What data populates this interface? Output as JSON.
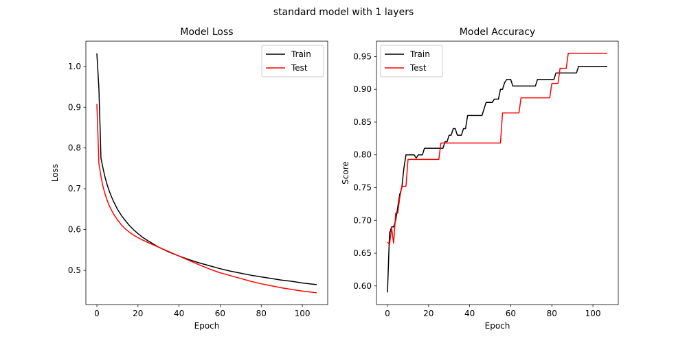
{
  "figure": {
    "suptitle": "standard model with 1 layers"
  },
  "chart_data": [
    {
      "type": "line",
      "title": "Model Loss",
      "xlabel": "Epoch",
      "ylabel": "Loss",
      "xlim": [
        -5.35,
        112.35
      ],
      "ylim": [
        0.416,
        1.062
      ],
      "xticks": [
        0,
        20,
        40,
        60,
        80,
        100
      ],
      "yticks": [
        0.5,
        0.6,
        0.7,
        0.8,
        0.9,
        1.0
      ],
      "ytick_format": 1,
      "legend": "top-right",
      "grid": false,
      "series": [
        {
          "name": "Train",
          "color": "#000000",
          "x": [
            0,
            1,
            2,
            3,
            4,
            5,
            6,
            7,
            8,
            10,
            12,
            14,
            16,
            18,
            20,
            22,
            25,
            30,
            35,
            40,
            45,
            50,
            55,
            60,
            65,
            70,
            75,
            80,
            85,
            90,
            95,
            100,
            105,
            107
          ],
          "y": [
            1.032,
            0.945,
            0.775,
            0.75,
            0.728,
            0.71,
            0.695,
            0.682,
            0.67,
            0.65,
            0.634,
            0.621,
            0.609,
            0.599,
            0.59,
            0.582,
            0.572,
            0.557,
            0.545,
            0.535,
            0.526,
            0.518,
            0.511,
            0.504,
            0.498,
            0.493,
            0.488,
            0.484,
            0.48,
            0.476,
            0.473,
            0.469,
            0.466,
            0.465
          ]
        },
        {
          "name": "Test",
          "color": "#ff0000",
          "x": [
            0,
            1,
            2,
            3,
            4,
            5,
            6,
            8,
            10,
            12,
            14,
            16,
            18,
            20,
            22,
            25,
            30,
            35,
            40,
            45,
            50,
            55,
            60,
            65,
            70,
            75,
            80,
            85,
            90,
            95,
            100,
            105,
            107
          ],
          "y": [
            0.908,
            0.762,
            0.73,
            0.705,
            0.687,
            0.672,
            0.659,
            0.639,
            0.624,
            0.611,
            0.601,
            0.593,
            0.586,
            0.58,
            0.575,
            0.568,
            0.557,
            0.546,
            0.535,
            0.524,
            0.513,
            0.503,
            0.494,
            0.487,
            0.48,
            0.473,
            0.467,
            0.462,
            0.457,
            0.453,
            0.449,
            0.446,
            0.445
          ]
        }
      ]
    },
    {
      "type": "line",
      "title": "Model Accuracy",
      "xlabel": "Epoch",
      "ylabel": "Score",
      "xlim": [
        -5.35,
        112.35
      ],
      "ylim": [
        0.5715,
        0.9735
      ],
      "xticks": [
        0,
        20,
        40,
        60,
        80,
        100
      ],
      "yticks": [
        0.6,
        0.65,
        0.7,
        0.75,
        0.8,
        0.85,
        0.9,
        0.95
      ],
      "ytick_format": 2,
      "legend": "top-left",
      "grid": false,
      "series": [
        {
          "name": "Train",
          "color": "#000000",
          "x": [
            0,
            1,
            2,
            3,
            4,
            5,
            6,
            7,
            8,
            9,
            10,
            11,
            12,
            13,
            14,
            15,
            16,
            17,
            18,
            19,
            20,
            21,
            22,
            23,
            24,
            25,
            26,
            27,
            28,
            29,
            30,
            31,
            32,
            33,
            34,
            35,
            36,
            37,
            38,
            39,
            40,
            41,
            42,
            43,
            44,
            45,
            46,
            47,
            48,
            49,
            50,
            51,
            52,
            53,
            54,
            55,
            56,
            57,
            58,
            59,
            60,
            61,
            62,
            63,
            64,
            65,
            66,
            67,
            68,
            69,
            70,
            71,
            72,
            73,
            74,
            75,
            76,
            77,
            78,
            79,
            80,
            81,
            82,
            83,
            84,
            85,
            86,
            87,
            88,
            89,
            90,
            91,
            92,
            93,
            94,
            95,
            96,
            97,
            98,
            99,
            100,
            101,
            102,
            103,
            104,
            105,
            106,
            107
          ],
          "y": [
            0.59,
            0.68,
            0.69,
            0.69,
            0.7,
            0.72,
            0.74,
            0.75,
            0.78,
            0.8,
            0.8,
            0.8,
            0.8,
            0.8,
            0.795,
            0.8,
            0.8,
            0.8,
            0.81,
            0.81,
            0.81,
            0.81,
            0.81,
            0.81,
            0.81,
            0.81,
            0.81,
            0.81,
            0.82,
            0.82,
            0.83,
            0.83,
            0.84,
            0.84,
            0.83,
            0.83,
            0.83,
            0.84,
            0.84,
            0.86,
            0.86,
            0.86,
            0.86,
            0.86,
            0.86,
            0.86,
            0.86,
            0.87,
            0.88,
            0.88,
            0.88,
            0.88,
            0.885,
            0.885,
            0.885,
            0.9,
            0.9,
            0.91,
            0.915,
            0.915,
            0.915,
            0.905,
            0.905,
            0.905,
            0.905,
            0.905,
            0.905,
            0.905,
            0.905,
            0.905,
            0.905,
            0.905,
            0.905,
            0.915,
            0.915,
            0.915,
            0.915,
            0.915,
            0.915,
            0.915,
            0.915,
            0.915,
            0.925,
            0.925,
            0.925,
            0.925,
            0.925,
            0.925,
            0.925,
            0.925,
            0.925,
            0.925,
            0.925,
            0.935,
            0.935,
            0.935,
            0.935,
            0.935,
            0.935,
            0.935,
            0.935,
            0.935,
            0.935,
            0.935,
            0.935,
            0.935,
            0.935,
            0.935
          ]
        },
        {
          "name": "Test",
          "color": "#ff0000",
          "x": [
            0,
            1,
            2,
            3,
            4,
            5,
            6,
            7,
            8,
            9,
            10,
            11,
            12,
            13,
            14,
            15,
            16,
            17,
            18,
            19,
            20,
            21,
            22,
            23,
            24,
            25,
            26,
            27,
            28,
            29,
            30,
            31,
            32,
            33,
            34,
            35,
            36,
            37,
            38,
            39,
            40,
            41,
            42,
            43,
            44,
            45,
            46,
            47,
            48,
            49,
            50,
            51,
            52,
            53,
            54,
            55,
            56,
            57,
            58,
            59,
            60,
            61,
            62,
            63,
            64,
            65,
            66,
            67,
            68,
            69,
            70,
            71,
            72,
            73,
            74,
            75,
            76,
            77,
            78,
            79,
            80,
            81,
            82,
            83,
            84,
            85,
            86,
            87,
            88,
            89,
            90,
            91,
            92,
            93,
            94,
            95,
            96,
            97,
            98,
            99,
            100,
            101,
            102,
            103,
            104,
            105,
            106,
            107
          ],
          "y": [
            0.667,
            0.663,
            0.689,
            0.665,
            0.711,
            0.711,
            0.735,
            0.752,
            0.752,
            0.752,
            0.793,
            0.793,
            0.793,
            0.793,
            0.793,
            0.793,
            0.793,
            0.793,
            0.793,
            0.793,
            0.793,
            0.793,
            0.793,
            0.793,
            0.793,
            0.793,
            0.818,
            0.818,
            0.818,
            0.818,
            0.818,
            0.818,
            0.818,
            0.818,
            0.818,
            0.818,
            0.818,
            0.818,
            0.818,
            0.818,
            0.818,
            0.818,
            0.818,
            0.818,
            0.818,
            0.818,
            0.818,
            0.818,
            0.818,
            0.818,
            0.818,
            0.818,
            0.818,
            0.818,
            0.818,
            0.818,
            0.864,
            0.864,
            0.864,
            0.864,
            0.864,
            0.864,
            0.864,
            0.864,
            0.864,
            0.887,
            0.887,
            0.887,
            0.887,
            0.887,
            0.887,
            0.887,
            0.887,
            0.887,
            0.887,
            0.887,
            0.887,
            0.887,
            0.887,
            0.887,
            0.909,
            0.909,
            0.909,
            0.909,
            0.932,
            0.932,
            0.932,
            0.932,
            0.955,
            0.955,
            0.955,
            0.955,
            0.955,
            0.955,
            0.955,
            0.955,
            0.955,
            0.955,
            0.955,
            0.955,
            0.955,
            0.955,
            0.955,
            0.955,
            0.955,
            0.955,
            0.955,
            0.955
          ]
        }
      ]
    }
  ]
}
